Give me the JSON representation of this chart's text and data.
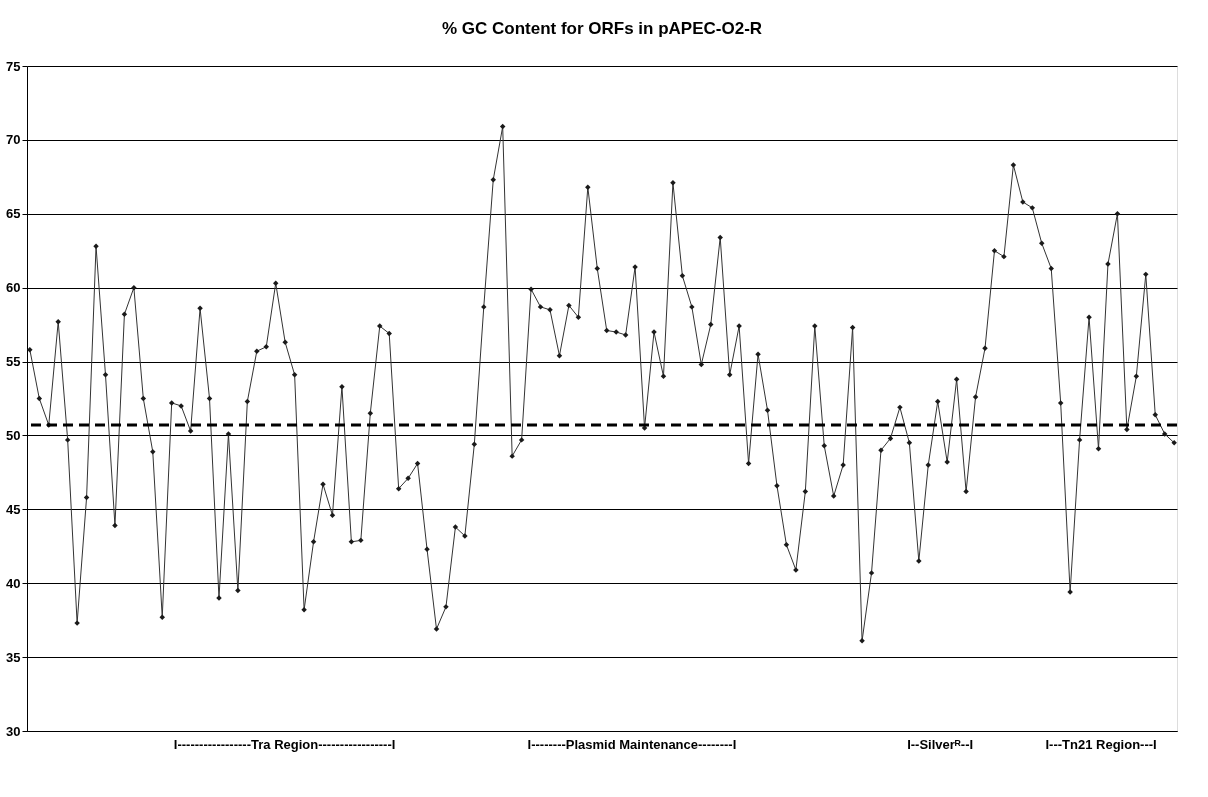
{
  "chart_data": {
    "type": "line",
    "title": "% GC Content for ORFs in pAPEC-O2-R",
    "categories": [
      null,
      null,
      null,
      null,
      null,
      null,
      null,
      null,
      null,
      null,
      null,
      null,
      null,
      null,
      null,
      null,
      null,
      null,
      null,
      null,
      null,
      null,
      null,
      null,
      null,
      null,
      null,
      null,
      null,
      null,
      null,
      null,
      null,
      null,
      null,
      null,
      null,
      null,
      null,
      null,
      null,
      null,
      null,
      null,
      null,
      null,
      null,
      null,
      null,
      null,
      null,
      null,
      null,
      null,
      null,
      null,
      null,
      null,
      null,
      null,
      null,
      null,
      null,
      null,
      null,
      null,
      null,
      null,
      null,
      null,
      null,
      null,
      null,
      null,
      null,
      null,
      null,
      null,
      null,
      null,
      null,
      null,
      null,
      null,
      null,
      null,
      null,
      null,
      null,
      null,
      null,
      null,
      null,
      null,
      null,
      null,
      null,
      null,
      null,
      null,
      null,
      null,
      null,
      null,
      null,
      null,
      null,
      null,
      null,
      null,
      null,
      null,
      null,
      null,
      null,
      null,
      null,
      null,
      null,
      null,
      null,
      null
    ],
    "series": [
      {
        "color": "#333333",
        "values": [
          55.8,
          52.5,
          50.7,
          57.7,
          49.7,
          37.3,
          45.8,
          62.8,
          54.1,
          43.9,
          58.2,
          60.0,
          52.5,
          48.9,
          37.7,
          52.2,
          52.0,
          50.3,
          58.6,
          52.5,
          39.0,
          50.1,
          39.5,
          52.3,
          55.7,
          56.0,
          60.3,
          56.3,
          54.1,
          38.2,
          42.8,
          46.7,
          44.6,
          53.3,
          42.8,
          42.9,
          51.5,
          57.4,
          56.9,
          46.4,
          47.1,
          48.1,
          42.3,
          36.9,
          38.4,
          43.8,
          43.2,
          49.4,
          58.7,
          67.3,
          70.9,
          48.6,
          49.7,
          59.9,
          58.7,
          58.5,
          55.4,
          58.8,
          58.0,
          66.8,
          61.3,
          57.1,
          57.0,
          56.8,
          61.4,
          50.5,
          57.0,
          54.0,
          67.1,
          60.8,
          58.7,
          54.8,
          57.5,
          63.4,
          54.1,
          57.4,
          48.1,
          55.5,
          51.7,
          46.6,
          42.6,
          40.9,
          46.2,
          57.4,
          49.3,
          45.9,
          48.0,
          57.3,
          36.1,
          40.7,
          49.0,
          49.8,
          51.9,
          49.5,
          41.5,
          48.0,
          52.3,
          48.2,
          53.8,
          46.2,
          52.6,
          55.9,
          62.5,
          62.1,
          68.3,
          65.8,
          65.4,
          63.0,
          61.3,
          52.2,
          39.4,
          49.7,
          58.0,
          49.1,
          61.6,
          65.0,
          50.4,
          54.0,
          60.9,
          51.4,
          50.1,
          49.5
        ]
      }
    ],
    "ylim": [
      30,
      75
    ],
    "yticks": [
      30,
      35,
      40,
      45,
      50,
      55,
      60,
      65,
      70,
      75
    ],
    "grid": "y",
    "tick_labels": "y",
    "marker": "diamond",
    "line_style": "solid",
    "ref_lines": [
      {
        "axis": "y",
        "value": 50.7,
        "color": "#000000",
        "line_style": "dashed"
      }
    ],
    "annotations": [
      "I-----------------Tra Region-----------------I",
      "I--------Plasmid Maintenance--------I",
      "I--Silverᴿ--I",
      "I---Tn21 Region---I"
    ]
  }
}
